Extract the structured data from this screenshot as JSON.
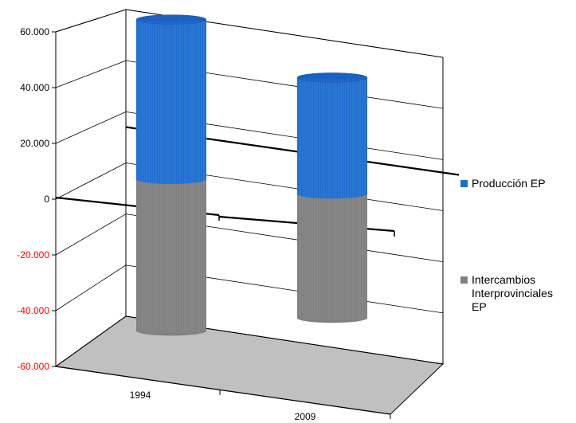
{
  "chart_data": {
    "type": "bar",
    "style": "3d-cylinder",
    "categories": [
      "1994",
      "2009"
    ],
    "series": [
      {
        "name": "Producción EP",
        "values": [
          60000,
          44000
        ],
        "color": "#1f6fd0"
      },
      {
        "name": "Intercambios Interprovinciales EP",
        "values": [
          -57000,
          -47000
        ],
        "color": "#808080"
      }
    ],
    "ylim": [
      -60000,
      60000
    ],
    "yticks": [
      "60.000",
      "40.000",
      "20.000",
      "0",
      "-20.000",
      "-40.000",
      "-60.000"
    ],
    "ytick_values": [
      60000,
      40000,
      20000,
      0,
      -20000,
      -40000,
      -60000
    ],
    "negative_tick_color": "#ff0000",
    "grid": true,
    "legend": "right",
    "legend_lines": [
      [
        "Producción EP"
      ],
      [
        "Intercambios",
        "Interprovinciales",
        "EP"
      ]
    ]
  }
}
